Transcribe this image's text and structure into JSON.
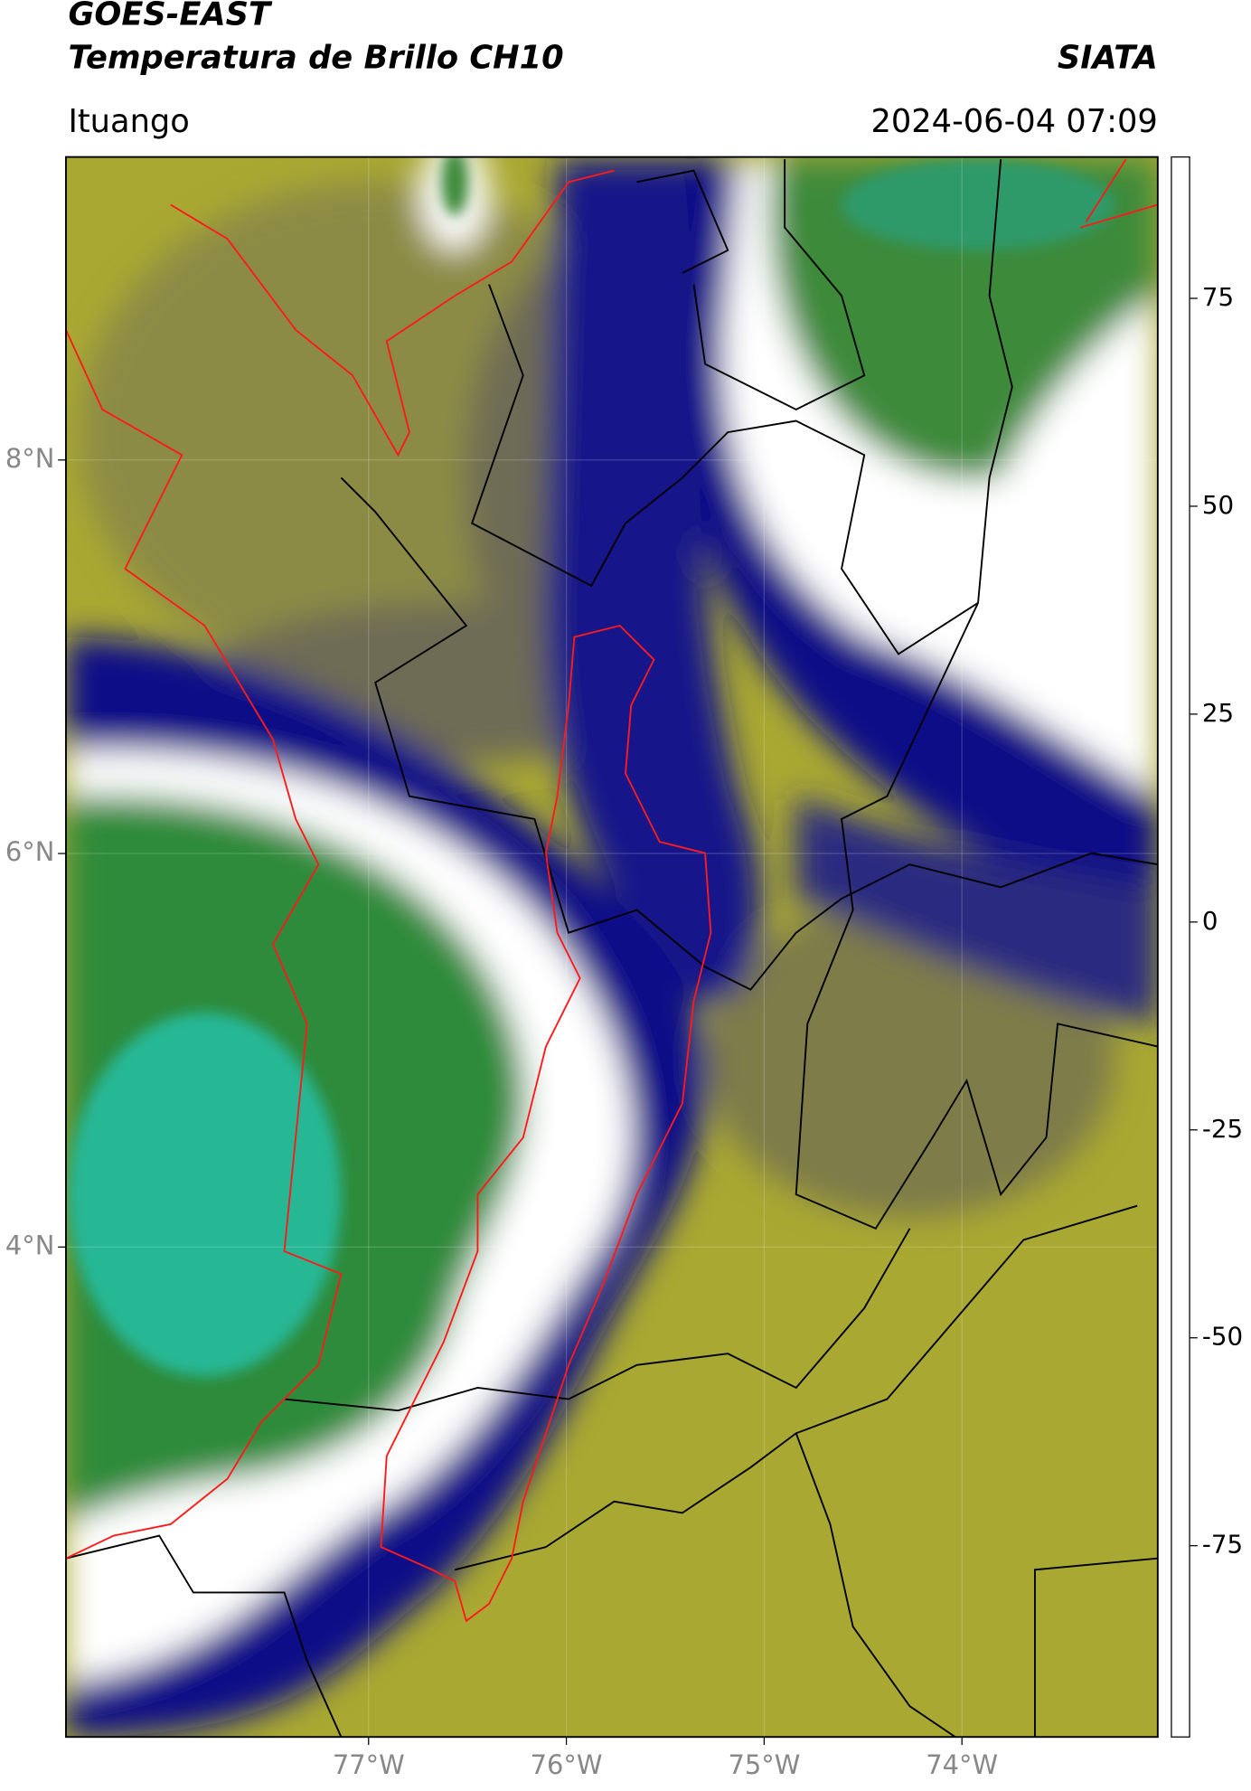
{
  "header": {
    "title": "GOES-EAST",
    "subtitle": "Temperatura de Brillo CH10",
    "brand": "SIATA",
    "location": "Ituango",
    "timestamp": "2024-06-04 07:09"
  },
  "map": {
    "xlim": [
      -78.53,
      -73.01
    ],
    "ylim": [
      1.51,
      9.54
    ],
    "xticks": [
      {
        "value": -77,
        "label": "77°W"
      },
      {
        "value": -76,
        "label": "76°W"
      },
      {
        "value": -75,
        "label": "75°W"
      },
      {
        "value": -74,
        "label": "74°W"
      }
    ],
    "yticks": [
      {
        "value": 8,
        "label": "8°N"
      },
      {
        "value": 6,
        "label": "6°N"
      },
      {
        "value": 4,
        "label": "4°N"
      }
    ]
  },
  "colorbar": {
    "lim": [
      -98,
      92
    ],
    "ticks": [
      -75,
      -50,
      -25,
      0,
      25,
      50,
      75
    ],
    "colormap": [
      {
        "value": -98,
        "color": "#ffffff"
      },
      {
        "value": -95.5,
        "color": "#ffffff"
      },
      {
        "value": -95,
        "color": "#00ffff"
      },
      {
        "value": -85,
        "color": "#20b0a0"
      },
      {
        "value": -75,
        "color": "#1aa890"
      },
      {
        "value": -68,
        "color": "#2e8b2e"
      },
      {
        "value": -60,
        "color": "#3a8a3a"
      },
      {
        "value": -55,
        "color": "#a0c0a0"
      },
      {
        "value": -50,
        "color": "#ffffff"
      },
      {
        "value": -42,
        "color": "#8080c0"
      },
      {
        "value": -32,
        "color": "#1a1a90"
      },
      {
        "value": -27,
        "color": "#000080"
      },
      {
        "value": -23,
        "color": "#404060"
      },
      {
        "value": -18,
        "color": "#808040"
      },
      {
        "value": -12,
        "color": "#c0c030"
      },
      {
        "value": -8,
        "color": "#ffff00"
      },
      {
        "value": -3,
        "color": "#ffa000"
      },
      {
        "value": 3,
        "color": "#ff4000"
      },
      {
        "value": 8,
        "color": "#ff0000"
      },
      {
        "value": 8.5,
        "color": "#000000"
      },
      {
        "value": 92,
        "color": "#000000"
      }
    ]
  }
}
